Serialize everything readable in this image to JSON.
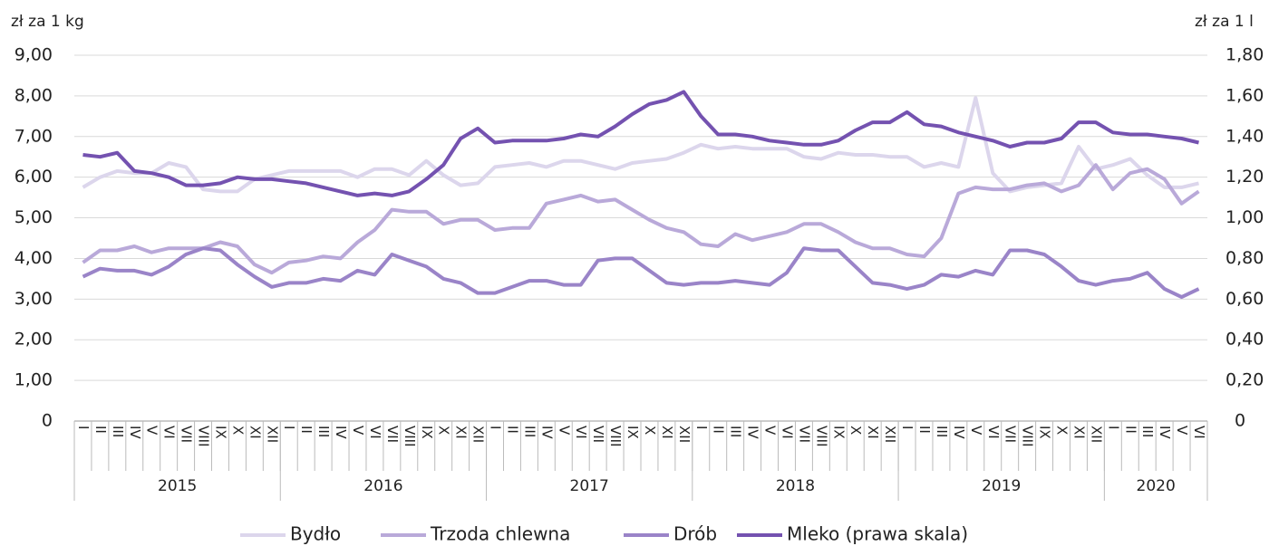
{
  "chart_data": {
    "type": "line",
    "ylabel": "zł za 1 kg",
    "y2label": "zł za 1 l",
    "categories": [
      "I",
      "II",
      "III",
      "IV",
      "V",
      "VI",
      "VII",
      "VIII",
      "IX",
      "X",
      "XI",
      "XII",
      "I",
      "II",
      "III",
      "IV",
      "V",
      "VI",
      "VII",
      "VIII",
      "IX",
      "X",
      "XI",
      "XII",
      "I",
      "II",
      "III",
      "IV",
      "V",
      "VI",
      "VII",
      "VIII",
      "IX",
      "X",
      "XI",
      "XII",
      "I",
      "II",
      "III",
      "IV",
      "V",
      "VI",
      "VII",
      "VIII",
      "IX",
      "X",
      "XI",
      "XII",
      "I",
      "II",
      "III",
      "IV",
      "V",
      "VI",
      "VII",
      "VIII",
      "IX",
      "X",
      "XI",
      "XII",
      "I",
      "II",
      "III",
      "IV",
      "V",
      "VI"
    ],
    "years": [
      "2015",
      "2016",
      "2017",
      "2018",
      "2019",
      "2020"
    ],
    "ylim": [
      0,
      9
    ],
    "yticks": [
      0,
      {
        "value": 1,
        "label": "1,00"
      },
      {
        "value": 2,
        "label": "2,00"
      },
      {
        "value": 3,
        "label": "3,00"
      },
      {
        "value": 4,
        "label": "4,00"
      },
      {
        "value": 5,
        "label": "5,00"
      },
      {
        "value": 6,
        "label": "6,00"
      },
      {
        "value": 7,
        "label": "7,00"
      },
      {
        "value": 8,
        "label": "8,00"
      },
      {
        "value": 9,
        "label": "9,00"
      }
    ],
    "y2lim": [
      0,
      1.8
    ],
    "y2ticks": [
      0,
      {
        "value": 0.2,
        "label": "0,20"
      },
      {
        "value": 0.4,
        "label": "0,40"
      },
      {
        "value": 0.6,
        "label": "0,60"
      },
      {
        "value": 0.8,
        "label": "0,80"
      },
      {
        "value": 1.0,
        "label": "1,00"
      },
      {
        "value": 1.2,
        "label": "1,20"
      },
      {
        "value": 1.4,
        "label": "1,40"
      },
      {
        "value": 1.6,
        "label": "1,60"
      },
      {
        "value": 1.8,
        "label": "1,80"
      }
    ],
    "grid": true,
    "legend": "bottom",
    "series": [
      {
        "name": "Bydło",
        "color": "#dcd6ec",
        "values": [
          5.75,
          6.0,
          6.15,
          6.1,
          6.1,
          6.35,
          6.25,
          5.7,
          5.65,
          5.65,
          5.95,
          6.05,
          6.15,
          6.15,
          6.15,
          6.15,
          6.0,
          6.2,
          6.2,
          6.05,
          6.4,
          6.05,
          5.8,
          5.85,
          6.25,
          6.3,
          6.35,
          6.25,
          6.4,
          6.4,
          6.3,
          6.2,
          6.35,
          6.4,
          6.45,
          6.6,
          6.8,
          6.7,
          6.75,
          6.7,
          6.7,
          6.7,
          6.5,
          6.45,
          6.6,
          6.55,
          6.55,
          6.5,
          6.5,
          6.25,
          6.35,
          6.25,
          7.95,
          6.1,
          5.65,
          5.75,
          5.8,
          5.85,
          6.75,
          6.2,
          6.3,
          6.45,
          6.05,
          5.75,
          5.75,
          5.85
        ]
      },
      {
        "name": "Trzoda chlewna",
        "color": "#b9a9d9",
        "values": [
          3.9,
          4.2,
          4.2,
          4.3,
          4.15,
          4.25,
          4.25,
          4.25,
          4.4,
          4.3,
          3.85,
          3.65,
          3.9,
          3.95,
          4.05,
          4.0,
          4.4,
          4.7,
          5.2,
          5.15,
          5.15,
          4.85,
          4.95,
          4.95,
          4.7,
          4.75,
          4.75,
          5.35,
          5.45,
          5.55,
          5.4,
          5.45,
          5.2,
          4.95,
          4.75,
          4.65,
          4.35,
          4.3,
          4.6,
          4.45,
          4.55,
          4.65,
          4.85,
          4.85,
          4.65,
          4.4,
          4.25,
          4.25,
          4.1,
          4.05,
          4.5,
          5.6,
          5.75,
          5.7,
          5.7,
          5.8,
          5.85,
          5.65,
          5.8,
          6.3,
          5.7,
          6.1,
          6.2,
          5.95,
          5.35,
          5.65
        ]
      },
      {
        "name": "Drób",
        "color": "#9a84c8",
        "values": [
          3.55,
          3.75,
          3.7,
          3.7,
          3.6,
          3.8,
          4.1,
          4.25,
          4.2,
          3.85,
          3.55,
          3.3,
          3.4,
          3.4,
          3.5,
          3.45,
          3.7,
          3.6,
          4.1,
          3.95,
          3.8,
          3.5,
          3.4,
          3.15,
          3.15,
          3.3,
          3.45,
          3.45,
          3.35,
          3.35,
          3.95,
          4.0,
          4.0,
          3.7,
          3.4,
          3.35,
          3.4,
          3.4,
          3.45,
          3.4,
          3.35,
          3.65,
          4.25,
          4.2,
          4.2,
          3.8,
          3.4,
          3.35,
          3.25,
          3.35,
          3.6,
          3.55,
          3.7,
          3.6,
          4.2,
          4.2,
          4.1,
          3.8,
          3.45,
          3.35,
          3.45,
          3.5,
          3.65,
          3.25,
          3.05,
          3.25
        ]
      },
      {
        "name": "Mleko (prawa skala)",
        "color": "#7452b0",
        "axis": "y2",
        "values": [
          1.31,
          1.3,
          1.32,
          1.23,
          1.22,
          1.2,
          1.16,
          1.16,
          1.17,
          1.2,
          1.19,
          1.19,
          1.18,
          1.17,
          1.15,
          1.13,
          1.11,
          1.12,
          1.11,
          1.13,
          1.19,
          1.26,
          1.39,
          1.44,
          1.37,
          1.38,
          1.38,
          1.38,
          1.39,
          1.41,
          1.4,
          1.45,
          1.51,
          1.56,
          1.58,
          1.62,
          1.5,
          1.41,
          1.41,
          1.4,
          1.38,
          1.37,
          1.36,
          1.36,
          1.38,
          1.43,
          1.47,
          1.47,
          1.52,
          1.46,
          1.45,
          1.42,
          1.4,
          1.38,
          1.35,
          1.37,
          1.37,
          1.39,
          1.47,
          1.47,
          1.42,
          1.41,
          1.41,
          1.4,
          1.39,
          1.37
        ]
      }
    ]
  }
}
